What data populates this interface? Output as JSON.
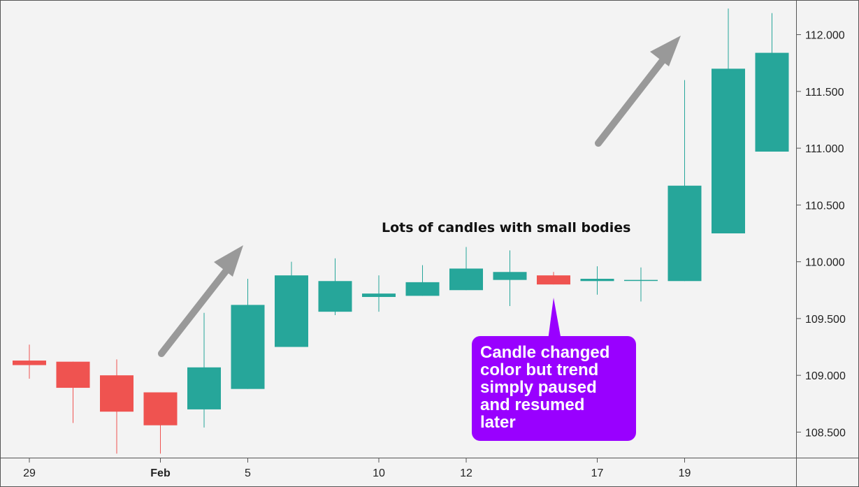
{
  "chart_data": {
    "type": "candlestick",
    "y_axis": {
      "range": [
        108.275,
        112.305
      ],
      "ticks": [
        "108.500",
        "109.000",
        "109.500",
        "110.000",
        "110.500",
        "111.000",
        "111.500",
        "112.000"
      ],
      "position": "right",
      "grid": false
    },
    "x_axis": {
      "ticks": [
        {
          "label": "29",
          "index": 0,
          "bold": false
        },
        {
          "label": "Feb",
          "index": 3,
          "bold": true
        },
        {
          "label": "5",
          "index": 5,
          "bold": false
        },
        {
          "label": "10",
          "index": 8,
          "bold": false
        },
        {
          "label": "12",
          "index": 10,
          "bold": false
        },
        {
          "label": "17",
          "index": 13,
          "bold": false
        },
        {
          "label": "19",
          "index": 15,
          "bold": false
        }
      ]
    },
    "colors": {
      "up": "#26a69a",
      "down": "#ef5350",
      "arrow": "#999999",
      "callout": "#9900ff",
      "background": "#f3f3f3"
    },
    "candles": [
      {
        "open": 109.13,
        "high": 109.27,
        "low": 108.97,
        "close": 109.09
      },
      {
        "open": 109.12,
        "high": 109.12,
        "low": 108.58,
        "close": 108.89
      },
      {
        "open": 109.0,
        "high": 109.14,
        "low": 108.31,
        "close": 108.68
      },
      {
        "open": 108.85,
        "high": 108.85,
        "low": 108.31,
        "close": 108.56
      },
      {
        "open": 108.7,
        "high": 109.55,
        "low": 108.54,
        "close": 109.07
      },
      {
        "open": 108.88,
        "high": 109.85,
        "low": 108.88,
        "close": 109.62
      },
      {
        "open": 109.25,
        "high": 110.0,
        "low": 109.25,
        "close": 109.88
      },
      {
        "open": 109.56,
        "high": 110.03,
        "low": 109.53,
        "close": 109.83
      },
      {
        "open": 109.69,
        "high": 109.88,
        "low": 109.56,
        "close": 109.72
      },
      {
        "open": 109.7,
        "high": 109.97,
        "low": 109.7,
        "close": 109.82
      },
      {
        "open": 109.75,
        "high": 110.13,
        "low": 109.75,
        "close": 109.94
      },
      {
        "open": 109.84,
        "high": 110.1,
        "low": 109.61,
        "close": 109.91
      },
      {
        "open": 109.88,
        "high": 109.91,
        "low": 109.8,
        "close": 109.8
      },
      {
        "open": 109.83,
        "high": 109.96,
        "low": 109.71,
        "close": 109.85
      },
      {
        "open": 109.84,
        "high": 109.95,
        "low": 109.65,
        "close": 109.84
      },
      {
        "open": 109.83,
        "high": 111.6,
        "low": 109.83,
        "close": 110.67
      },
      {
        "open": 110.25,
        "high": 112.23,
        "low": 110.25,
        "close": 111.7
      },
      {
        "open": 110.97,
        "high": 112.19,
        "low": 110.97,
        "close": 111.84
      }
    ],
    "annotations": {
      "small_bodies_text": "Lots of candles with small bodies",
      "callout_lines": [
        "Candle changed",
        "color but trend",
        "simply paused",
        "and resumed",
        "later"
      ]
    }
  }
}
